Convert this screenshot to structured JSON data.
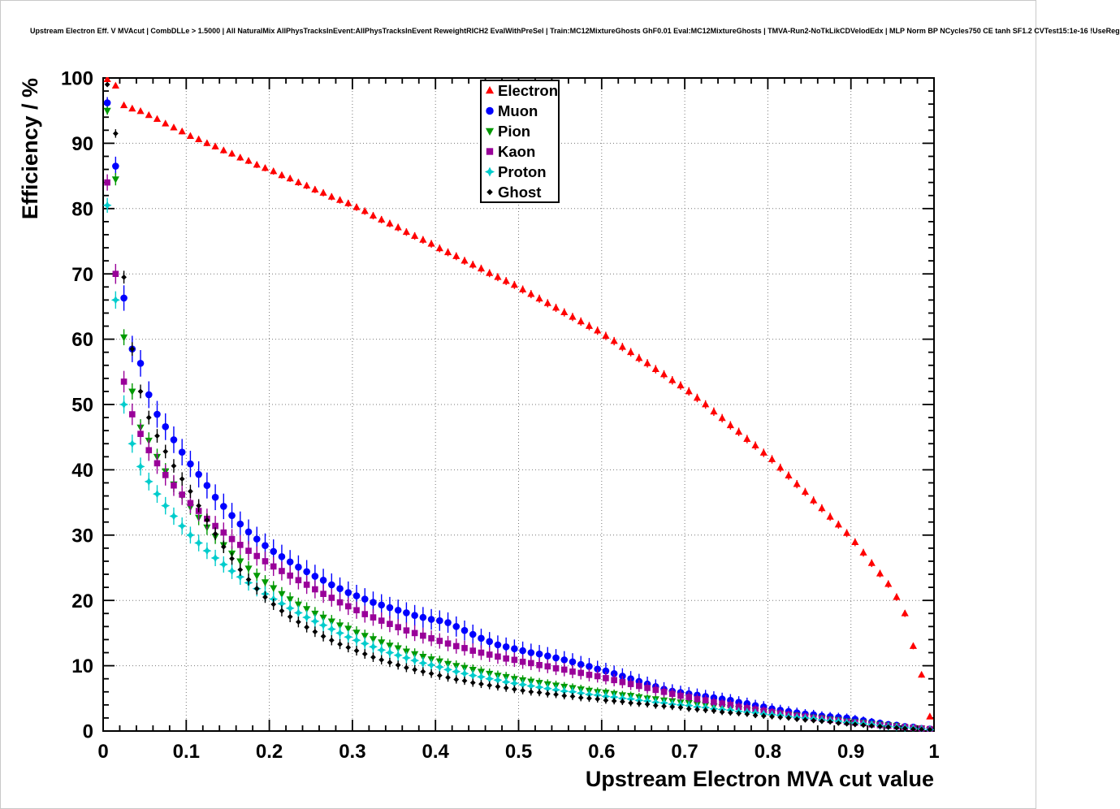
{
  "header": {
    "title": "Upstream Electron Eff. V MVAcut | CombDLLe > 1.5000 | All NaturalMix AllPhysTracksInEvent:AllPhysTracksInEvent ReweightRICH2 EvalWithPreSel | Train:MC12MixtureGhosts GhF0.01 Eval:MC12MixtureGhosts | TMVA-Run2-NoTkLikCDVelodEdx | MLP Norm BP NCycles750 CE tanh SF1.2 CVTest15:1e-16 !UseReg"
  },
  "chart_data": {
    "type": "scatter",
    "title": "Upstream Electron Eff. V MVAcut | CombDLLe > 1.5000 | All NaturalMix AllPhysTracksInEvent:AllPhysTracksInEvent ReweightRICH2 EvalWithPreSel | Train:MC12MixtureGhosts GhF0.01 Eval:MC12MixtureGhosts | TMVA-Run2-NoTkLikCDVelodEdx | MLP Norm BP NCycles750 CE tanh SF1.2 CVTest15:1e-16 !UseReg",
    "xlabel": "Upstream Electron MVA cut value",
    "ylabel": "Efficiency / %",
    "xlim": [
      0,
      1
    ],
    "ylim": [
      0,
      100
    ],
    "x_major_tick": 0.1,
    "x_minor_tick": 0.02,
    "y_major_tick": 10,
    "y_minor_tick": 2,
    "grid": "dotted",
    "legend_position": "top-center",
    "x_tick_labels": [
      "0",
      "0.1",
      "0.2",
      "0.3",
      "0.4",
      "0.5",
      "0.6",
      "0.7",
      "0.8",
      "0.9",
      "1"
    ],
    "y_tick_labels": [
      "0",
      "10",
      "20",
      "30",
      "40",
      "50",
      "60",
      "70",
      "80",
      "90",
      "100"
    ],
    "x_start": 0.005,
    "x_step": 0.01,
    "series": [
      {
        "name": "Electron",
        "color": "#ff0000",
        "marker": "triangle-up",
        "err_scale": 0.1,
        "values": [
          99.8,
          98.8,
          95.8,
          95.3,
          94.9,
          94.3,
          93.7,
          93.0,
          92.4,
          91.8,
          91.1,
          90.6,
          90.0,
          89.5,
          88.9,
          88.4,
          87.8,
          87.3,
          86.7,
          86.2,
          85.7,
          85.1,
          84.6,
          84.0,
          83.5,
          82.9,
          82.4,
          81.8,
          81.3,
          80.8,
          80.2,
          79.6,
          78.9,
          78.3,
          77.7,
          77.1,
          76.4,
          75.8,
          75.2,
          74.6,
          73.9,
          73.3,
          72.7,
          72.0,
          71.4,
          70.8,
          70.1,
          69.5,
          68.9,
          68.3,
          67.6,
          66.9,
          66.2,
          65.5,
          64.8,
          64.1,
          63.4,
          62.7,
          62.0,
          61.3,
          60.5,
          59.7,
          58.8,
          58.0,
          57.1,
          56.3,
          55.4,
          54.6,
          53.7,
          52.9,
          52.0,
          51.0,
          50.0,
          48.9,
          47.9,
          46.8,
          45.8,
          44.7,
          43.7,
          42.6,
          41.6,
          40.3,
          39.1,
          37.8,
          36.6,
          35.3,
          34.1,
          32.8,
          31.6,
          30.3,
          28.9,
          27.3,
          25.7,
          24.1,
          22.5,
          20.5,
          18.0,
          13.0,
          8.6,
          2.2
        ]
      },
      {
        "name": "Muon",
        "color": "#0000ff",
        "marker": "circle",
        "err_scale": 0.38,
        "values": [
          96.2,
          86.5,
          66.3,
          58.5,
          56.3,
          51.5,
          48.5,
          46.6,
          44.6,
          42.7,
          40.9,
          39.3,
          37.6,
          35.8,
          34.4,
          33.0,
          31.7,
          30.5,
          29.4,
          28.4,
          27.5,
          26.7,
          25.9,
          25.1,
          24.4,
          23.7,
          23.1,
          22.4,
          21.8,
          21.2,
          20.7,
          20.2,
          19.7,
          19.3,
          18.9,
          18.5,
          18.1,
          17.7,
          17.4,
          17.1,
          16.9,
          16.6,
          16.0,
          15.4,
          14.8,
          14.2,
          13.7,
          13.2,
          12.9,
          12.6,
          12.3,
          12.0,
          11.8,
          11.5,
          11.2,
          10.9,
          10.6,
          10.2,
          9.9,
          9.5,
          9.2,
          8.8,
          8.4,
          8.0,
          7.6,
          7.2,
          6.8,
          6.4,
          6.1,
          5.9,
          5.7,
          5.5,
          5.3,
          5.1,
          4.9,
          4.7,
          4.4,
          4.2,
          3.9,
          3.7,
          3.4,
          3.2,
          3.0,
          2.8,
          2.6,
          2.5,
          2.3,
          2.2,
          2.1,
          2.0,
          1.8,
          1.6,
          1.4,
          1.2,
          1.0,
          0.9,
          0.7,
          0.6,
          0.4,
          0.3
        ]
      },
      {
        "name": "Pion",
        "color": "#009900",
        "marker": "triangle-down",
        "err_scale": 0.22,
        "values": [
          95.0,
          84.5,
          60.3,
          52.0,
          46.5,
          44.5,
          42.0,
          39.8,
          37.8,
          36.0,
          34.3,
          32.7,
          31.2,
          29.8,
          28.5,
          27.2,
          26.0,
          24.9,
          23.8,
          22.8,
          21.9,
          21.0,
          20.2,
          19.4,
          18.7,
          18.0,
          17.4,
          16.8,
          16.2,
          15.7,
          15.1,
          14.6,
          14.1,
          13.6,
          13.1,
          12.7,
          12.2,
          11.8,
          11.4,
          11.0,
          10.7,
          10.3,
          10.0,
          9.7,
          9.4,
          9.1,
          8.8,
          8.5,
          8.3,
          8.0,
          7.8,
          7.6,
          7.4,
          7.2,
          7.0,
          6.8,
          6.6,
          6.4,
          6.2,
          6.0,
          5.9,
          5.7,
          5.5,
          5.4,
          5.2,
          5.0,
          4.9,
          4.7,
          4.6,
          4.4,
          4.3,
          4.1,
          4.0,
          3.8,
          3.7,
          3.5,
          3.4,
          3.2,
          3.1,
          2.9,
          2.8,
          2.7,
          2.5,
          2.4,
          2.2,
          2.1,
          2.0,
          1.8,
          1.7,
          1.5,
          1.4,
          1.3,
          1.1,
          1.0,
          0.9,
          0.8,
          0.6,
          0.5,
          0.4,
          0.2
        ]
      },
      {
        "name": "Kaon",
        "color": "#990099",
        "marker": "square",
        "err_scale": 0.3,
        "values": [
          84.0,
          70.0,
          53.5,
          48.5,
          45.5,
          43.0,
          41.0,
          39.2,
          37.6,
          36.2,
          34.9,
          33.7,
          32.5,
          31.4,
          30.4,
          29.4,
          28.5,
          27.6,
          26.8,
          26.0,
          25.2,
          24.5,
          23.8,
          23.1,
          22.4,
          21.7,
          21.0,
          20.4,
          19.7,
          19.1,
          18.5,
          17.9,
          17.4,
          16.9,
          16.4,
          15.9,
          15.4,
          15.0,
          14.6,
          14.2,
          13.8,
          13.4,
          13.0,
          12.7,
          12.3,
          12.0,
          11.7,
          11.4,
          11.1,
          10.9,
          10.6,
          10.4,
          10.1,
          9.9,
          9.6,
          9.4,
          9.1,
          8.9,
          8.6,
          8.4,
          8.1,
          7.8,
          7.5,
          7.2,
          6.9,
          6.6,
          6.3,
          6.0,
          5.7,
          5.4,
          5.2,
          4.9,
          4.7,
          4.4,
          4.2,
          4.0,
          3.7,
          3.5,
          3.3,
          3.1,
          2.9,
          2.7,
          2.5,
          2.3,
          2.2,
          2.0,
          1.9,
          1.7,
          1.6,
          1.4,
          1.3,
          1.2,
          1.0,
          0.9,
          0.8,
          0.7,
          0.6,
          0.5,
          0.4,
          0.3
        ]
      },
      {
        "name": "Proton",
        "color": "#00cccc",
        "marker": "star",
        "err_scale": 0.25,
        "values": [
          80.5,
          66.0,
          50.0,
          44.0,
          40.5,
          38.2,
          36.3,
          34.5,
          32.9,
          31.4,
          30.0,
          28.8,
          27.6,
          26.5,
          25.5,
          24.5,
          23.6,
          22.7,
          21.8,
          21.0,
          20.2,
          19.5,
          18.8,
          18.1,
          17.4,
          16.8,
          16.2,
          15.6,
          15.0,
          14.4,
          13.9,
          13.4,
          12.9,
          12.4,
          12.0,
          11.6,
          11.2,
          10.8,
          10.4,
          10.1,
          9.8,
          9.4,
          9.1,
          8.8,
          8.5,
          8.3,
          8.0,
          7.8,
          7.5,
          7.3,
          7.1,
          6.9,
          6.7,
          6.5,
          6.3,
          6.1,
          6.0,
          5.8,
          5.6,
          5.5,
          5.3,
          5.2,
          5.0,
          4.9,
          4.7,
          4.6,
          4.4,
          4.3,
          4.1,
          4.0,
          3.9,
          3.7,
          3.6,
          3.4,
          3.3,
          3.2,
          3.0,
          2.9,
          2.8,
          2.6,
          2.5,
          2.4,
          2.2,
          2.1,
          2.0,
          1.9,
          1.7,
          1.6,
          1.5,
          1.3,
          1.2,
          1.1,
          1.0,
          0.8,
          0.7,
          0.6,
          0.5,
          0.4,
          0.3,
          0.2
        ]
      },
      {
        "name": "Ghost",
        "color": "#000000",
        "marker": "diamond",
        "err_scale": 0.18,
        "values": [
          99.0,
          91.5,
          69.5,
          58.5,
          52.0,
          48.0,
          45.2,
          42.8,
          40.6,
          38.6,
          36.7,
          34.5,
          32.3,
          30.2,
          28.2,
          26.4,
          24.7,
          23.2,
          21.8,
          20.5,
          19.4,
          18.4,
          17.5,
          16.7,
          15.9,
          15.2,
          14.5,
          13.9,
          13.3,
          12.8,
          12.3,
          11.8,
          11.3,
          10.9,
          10.5,
          10.1,
          9.7,
          9.4,
          9.1,
          8.8,
          8.5,
          8.2,
          7.9,
          7.7,
          7.4,
          7.2,
          7.0,
          6.8,
          6.6,
          6.4,
          6.2,
          6.0,
          5.9,
          5.7,
          5.6,
          5.4,
          5.3,
          5.1,
          5.0,
          4.9,
          4.7,
          4.6,
          4.5,
          4.3,
          4.2,
          4.1,
          3.9,
          3.8,
          3.7,
          3.6,
          3.4,
          3.3,
          3.2,
          3.1,
          2.9,
          2.8,
          2.7,
          2.6,
          2.4,
          2.3,
          2.2,
          2.1,
          2.0,
          1.8,
          1.7,
          1.6,
          1.5,
          1.4,
          1.2,
          1.1,
          1.0,
          0.9,
          0.8,
          0.7,
          0.6,
          0.5,
          0.4,
          0.3,
          0.25,
          0.2
        ]
      }
    ]
  }
}
